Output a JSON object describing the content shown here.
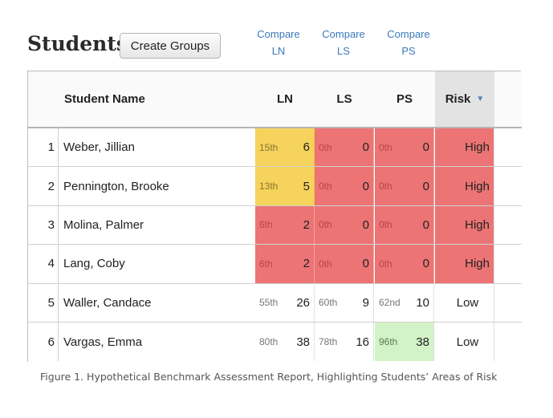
{
  "page": {
    "title": "Students",
    "create_groups_label": "Create Groups"
  },
  "compare_links": [
    {
      "line1": "Compare",
      "line2": "LN"
    },
    {
      "line1": "Compare",
      "line2": "LS"
    },
    {
      "line1": "Compare",
      "line2": "PS"
    }
  ],
  "table": {
    "headers": {
      "student_name": "Student Name",
      "ln": "LN",
      "ls": "LS",
      "ps": "PS",
      "risk": "Risk",
      "risk_sort_icon": "sort-descending-icon"
    },
    "colors": {
      "risk_red": "#ec7474",
      "warning_yellow": "#f5d35c",
      "strength_green": "#d2f3c7",
      "link_blue": "#3a7ab8"
    },
    "rows": [
      {
        "num": "1",
        "name": "Weber, Jillian",
        "ln": {
          "pct": "15th",
          "score": "6",
          "level": "yellow"
        },
        "ls": {
          "pct": "0th",
          "score": "0",
          "level": "red"
        },
        "ps": {
          "pct": "0th",
          "score": "0",
          "level": "red"
        },
        "risk": "High"
      },
      {
        "num": "2",
        "name": "Pennington, Brooke",
        "ln": {
          "pct": "13th",
          "score": "5",
          "level": "yellow"
        },
        "ls": {
          "pct": "0th",
          "score": "0",
          "level": "red"
        },
        "ps": {
          "pct": "0th",
          "score": "0",
          "level": "red"
        },
        "risk": "High"
      },
      {
        "num": "3",
        "name": "Molina, Palmer",
        "ln": {
          "pct": "6th",
          "score": "2",
          "level": "red"
        },
        "ls": {
          "pct": "0th",
          "score": "0",
          "level": "red"
        },
        "ps": {
          "pct": "0th",
          "score": "0",
          "level": "red"
        },
        "risk": "High"
      },
      {
        "num": "4",
        "name": "Lang, Coby",
        "ln": {
          "pct": "6th",
          "score": "2",
          "level": "red"
        },
        "ls": {
          "pct": "0th",
          "score": "0",
          "level": "red"
        },
        "ps": {
          "pct": "0th",
          "score": "0",
          "level": "red"
        },
        "risk": "High"
      },
      {
        "num": "5",
        "name": "Waller, Candace",
        "ln": {
          "pct": "55th",
          "score": "26",
          "level": "white"
        },
        "ls": {
          "pct": "60th",
          "score": "9",
          "level": "white"
        },
        "ps": {
          "pct": "62nd",
          "score": "10",
          "level": "white"
        },
        "risk": "Low"
      },
      {
        "num": "6",
        "name": "Vargas, Emma",
        "ln": {
          "pct": "80th",
          "score": "38",
          "level": "white"
        },
        "ls": {
          "pct": "78th",
          "score": "16",
          "level": "white"
        },
        "ps": {
          "pct": "96th",
          "score": "38",
          "level": "green"
        },
        "risk": "Low"
      }
    ]
  },
  "caption": "Figure 1. Hypothetical Benchmark Assessment Report, Highlighting Students’ Areas of Risk"
}
